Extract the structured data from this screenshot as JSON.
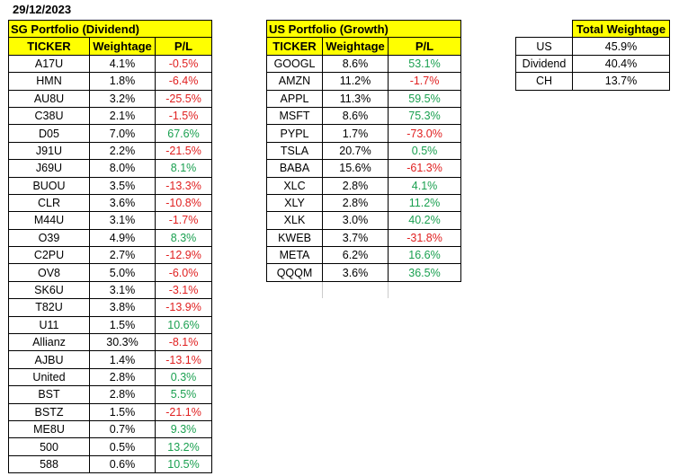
{
  "date": "29/12/2023",
  "sg": {
    "title": "SG Portfolio (Dividend)",
    "headers": [
      "TICKER",
      "Weightage",
      "P/L"
    ],
    "rows": [
      [
        "A17U",
        "4.1%",
        "-0.5%"
      ],
      [
        "HMN",
        "1.8%",
        "-6.4%"
      ],
      [
        "AU8U",
        "3.2%",
        "-25.5%"
      ],
      [
        "C38U",
        "2.1%",
        "-1.5%"
      ],
      [
        "D05",
        "7.0%",
        "67.6%"
      ],
      [
        "J91U",
        "2.2%",
        "-21.5%"
      ],
      [
        "J69U",
        "8.0%",
        "8.1%"
      ],
      [
        "BUOU",
        "3.5%",
        "-13.3%"
      ],
      [
        "CLR",
        "3.6%",
        "-10.8%"
      ],
      [
        "M44U",
        "3.1%",
        "-1.7%"
      ],
      [
        "O39",
        "4.9%",
        "8.3%"
      ],
      [
        "C2PU",
        "2.7%",
        "-12.9%"
      ],
      [
        "OV8",
        "5.0%",
        "-6.0%"
      ],
      [
        "SK6U",
        "3.1%",
        "-3.1%"
      ],
      [
        "T82U",
        "3.8%",
        "-13.9%"
      ],
      [
        "U11",
        "1.5%",
        "10.6%"
      ],
      [
        "Allianz",
        "30.3%",
        "-8.1%"
      ],
      [
        "AJBU",
        "1.4%",
        "-13.1%"
      ],
      [
        "United",
        "2.8%",
        "0.3%"
      ],
      [
        "BST",
        "2.8%",
        "5.5%"
      ],
      [
        "BSTZ",
        "1.5%",
        "-21.1%"
      ],
      [
        "ME8U",
        "0.7%",
        "9.3%"
      ],
      [
        "500",
        "0.5%",
        "13.2%"
      ],
      [
        "588",
        "0.6%",
        "10.5%"
      ]
    ]
  },
  "us": {
    "title": "US Portfolio (Growth)",
    "headers": [
      "TICKER",
      "Weightage",
      "P/L"
    ],
    "rows": [
      [
        "GOOGL",
        "8.6%",
        "53.1%"
      ],
      [
        "AMZN",
        "11.2%",
        "-1.7%"
      ],
      [
        "APPL",
        "11.3%",
        "59.5%"
      ],
      [
        "MSFT",
        "8.6%",
        "75.3%"
      ],
      [
        "PYPL",
        "1.7%",
        "-73.0%"
      ],
      [
        "TSLA",
        "20.7%",
        "0.5%"
      ],
      [
        "BABA",
        "15.6%",
        "-61.3%"
      ],
      [
        "XLC",
        "2.8%",
        "4.1%"
      ],
      [
        "XLY",
        "2.8%",
        "11.2%"
      ],
      [
        "XLK",
        "3.0%",
        "40.2%"
      ],
      [
        "KWEB",
        "3.7%",
        "-31.8%"
      ],
      [
        "META",
        "6.2%",
        "16.6%"
      ],
      [
        "QQQM",
        "3.6%",
        "36.5%"
      ]
    ]
  },
  "total": {
    "title": "Total Weightage",
    "rows": [
      [
        "US",
        "45.9%"
      ],
      [
        "Dividend",
        "40.4%"
      ],
      [
        "CH",
        "13.7%"
      ]
    ]
  },
  "colors": {
    "header": "#ffff00",
    "negative": "#e02020",
    "positive": "#1aa050"
  }
}
